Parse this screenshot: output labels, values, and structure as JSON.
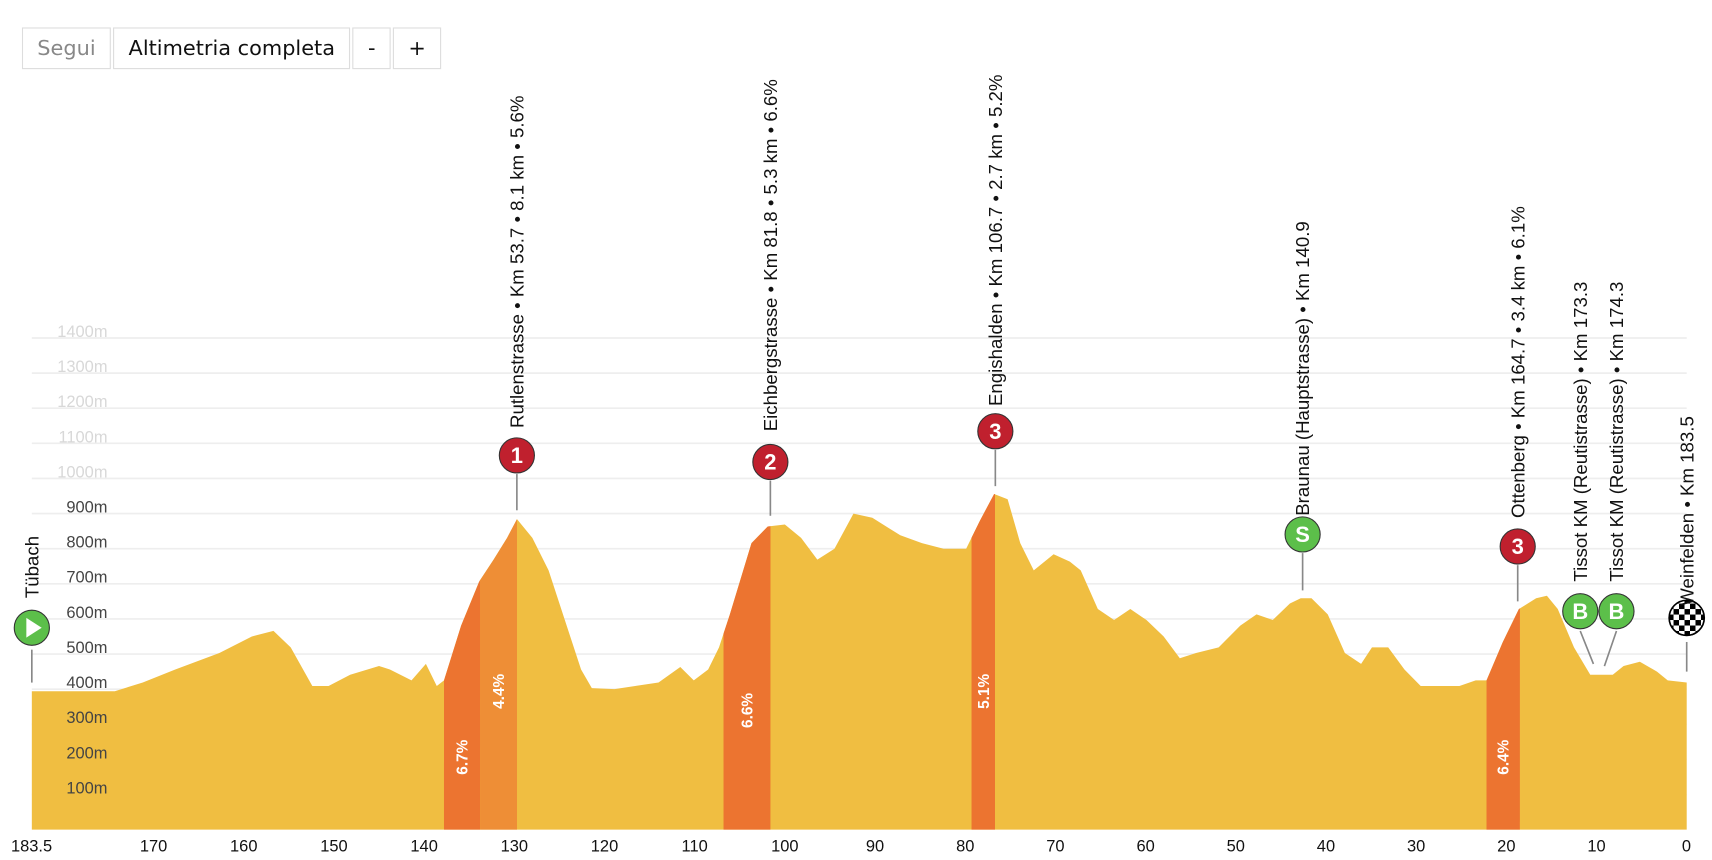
{
  "toolbar": {
    "follow_label": "Segui",
    "full_label": "Altimetria completa",
    "zoom_out_label": "-",
    "zoom_in_label": "+"
  },
  "colors": {
    "profile": "#F0BE41",
    "climb_dark": "#EC7430",
    "climb_light": "#EE8E36",
    "kom_badge": "#C0202E",
    "sprint_badge": "#5CBF4A",
    "grid": "#eeeeee"
  },
  "chart_data": {
    "type": "area",
    "xlabel": "",
    "ylabel": "",
    "x_reversed": true,
    "xlim": [
      183.5,
      0
    ],
    "ylim": [
      0,
      1400
    ],
    "grid": true,
    "x_ticks": [
      "183.5",
      "170",
      "160",
      "150",
      "140",
      "130",
      "120",
      "110",
      "100",
      "90",
      "80",
      "70",
      "60",
      "50",
      "40",
      "30",
      "20",
      "10",
      "0"
    ],
    "x_tick_values": [
      183.5,
      170,
      160,
      150,
      140,
      130,
      120,
      110,
      100,
      90,
      80,
      70,
      60,
      50,
      40,
      30,
      20,
      10,
      0
    ],
    "y_ticks": [
      "100m",
      "200m",
      "300m",
      "400m",
      "500m",
      "600m",
      "700m",
      "800m",
      "900m",
      "1000m",
      "1100m",
      "1200m",
      "1300m",
      "1400m"
    ],
    "y_tick_values": [
      100,
      200,
      300,
      400,
      500,
      600,
      700,
      800,
      900,
      1000,
      1100,
      1200,
      1300,
      1400
    ],
    "profile": [
      [
        183.5,
        394
      ],
      [
        174.3,
        394
      ],
      [
        171.2,
        419
      ],
      [
        167.6,
        456
      ],
      [
        162.7,
        503
      ],
      [
        159.1,
        550
      ],
      [
        156.7,
        566
      ],
      [
        154.8,
        519
      ],
      [
        152.4,
        409
      ],
      [
        150.6,
        409
      ],
      [
        148.2,
        441
      ],
      [
        145.0,
        466
      ],
      [
        143.8,
        456
      ],
      [
        141.4,
        425
      ],
      [
        139.8,
        472
      ],
      [
        138.6,
        409
      ],
      [
        137.8,
        425
      ],
      [
        135.9,
        581
      ],
      [
        133.9,
        706
      ],
      [
        132.3,
        769
      ],
      [
        130.8,
        831
      ],
      [
        129.7,
        884
      ],
      [
        128.0,
        831
      ],
      [
        126.2,
        738
      ],
      [
        124.4,
        597
      ],
      [
        122.6,
        456
      ],
      [
        121.4,
        403
      ],
      [
        118.9,
        400
      ],
      [
        114.0,
        419
      ],
      [
        111.6,
        463
      ],
      [
        110.1,
        425
      ],
      [
        108.5,
        456
      ],
      [
        107.3,
        519
      ],
      [
        106.1,
        613
      ],
      [
        103.7,
        816
      ],
      [
        101.9,
        863
      ],
      [
        100.0,
        869
      ],
      [
        98.2,
        831
      ],
      [
        96.4,
        769
      ],
      [
        94.5,
        800
      ],
      [
        92.4,
        900
      ],
      [
        90.3,
        888
      ],
      [
        87.2,
        838
      ],
      [
        84.8,
        816
      ],
      [
        82.4,
        800
      ],
      [
        79.9,
        800
      ],
      [
        78.4,
        878
      ],
      [
        76.8,
        956
      ],
      [
        75.3,
        941
      ],
      [
        73.9,
        816
      ],
      [
        72.4,
        738
      ],
      [
        70.2,
        784
      ],
      [
        68.4,
        763
      ],
      [
        67.2,
        738
      ],
      [
        65.3,
        628
      ],
      [
        63.5,
        597
      ],
      [
        61.7,
        628
      ],
      [
        59.9,
        597
      ],
      [
        58.0,
        550
      ],
      [
        56.2,
        488
      ],
      [
        54.4,
        503
      ],
      [
        51.9,
        519
      ],
      [
        49.5,
        581
      ],
      [
        47.7,
        613
      ],
      [
        45.9,
        597
      ],
      [
        44.0,
        644
      ],
      [
        42.8,
        659
      ],
      [
        41.6,
        659
      ],
      [
        39.8,
        613
      ],
      [
        37.9,
        503
      ],
      [
        36.1,
        472
      ],
      [
        34.9,
        519
      ],
      [
        33.1,
        519
      ],
      [
        31.3,
        456
      ],
      [
        29.5,
        409
      ],
      [
        25.2,
        409
      ],
      [
        23.4,
        425
      ],
      [
        22.2,
        425
      ],
      [
        20.4,
        534
      ],
      [
        18.6,
        628
      ],
      [
        16.7,
        659
      ],
      [
        15.5,
        666
      ],
      [
        14.3,
        628
      ],
      [
        12.5,
        519
      ],
      [
        10.7,
        441
      ],
      [
        8.2,
        441
      ],
      [
        7.0,
        466
      ],
      [
        5.2,
        478
      ],
      [
        3.3,
        450
      ],
      [
        2.1,
        425
      ],
      [
        0,
        419
      ]
    ],
    "climbs": [
      {
        "from": 137.8,
        "to": 133.8,
        "gradient": "6.7%",
        "shade": "dark"
      },
      {
        "from": 133.8,
        "to": 129.7,
        "gradient": "4.4%",
        "shade": "light"
      },
      {
        "from": 106.8,
        "to": 101.6,
        "gradient": "6.6%",
        "shade": "dark"
      },
      {
        "from": 79.3,
        "to": 76.7,
        "gradient": "5.1%",
        "shade": "dark"
      },
      {
        "from": 22.2,
        "to": 18.5,
        "gradient": "6.4%",
        "shade": "dark"
      }
    ],
    "markers": [
      {
        "km": 183.5,
        "type": "start",
        "badge": "",
        "label": "Tübach"
      },
      {
        "km": 129.7,
        "type": "kom",
        "badge": "1",
        "label": "Rutlenstrasse • Km 53.7 • 8.1 km • 5.6%"
      },
      {
        "km": 101.6,
        "type": "kom",
        "badge": "2",
        "label": "Eichbergstrasse • Km 81.8 • 5.3 km • 6.6%"
      },
      {
        "km": 76.7,
        "type": "kom",
        "badge": "3",
        "label": "Engishalden • Km 106.7 • 2.7 km • 5.2%"
      },
      {
        "km": 42.6,
        "type": "sprint",
        "badge": "S",
        "label": "Braunau (Hauptstrasse) • Km 140.9"
      },
      {
        "km": 18.7,
        "type": "kom",
        "badge": "3",
        "label": "Ottenberg • Km 164.7 • 3.4 km • 6.1%"
      },
      {
        "km": 10.2,
        "type": "bonus",
        "badge": "B",
        "label": "Tissot KM (Reutistrasse) • Km 173.3"
      },
      {
        "km": 9.2,
        "type": "bonus",
        "badge": "B",
        "label": "Tissot KM (Reutistrasse) • Km 174.3"
      },
      {
        "km": 0,
        "type": "finish",
        "badge": "",
        "label": "Weinfelden • Km 183.5"
      }
    ]
  }
}
